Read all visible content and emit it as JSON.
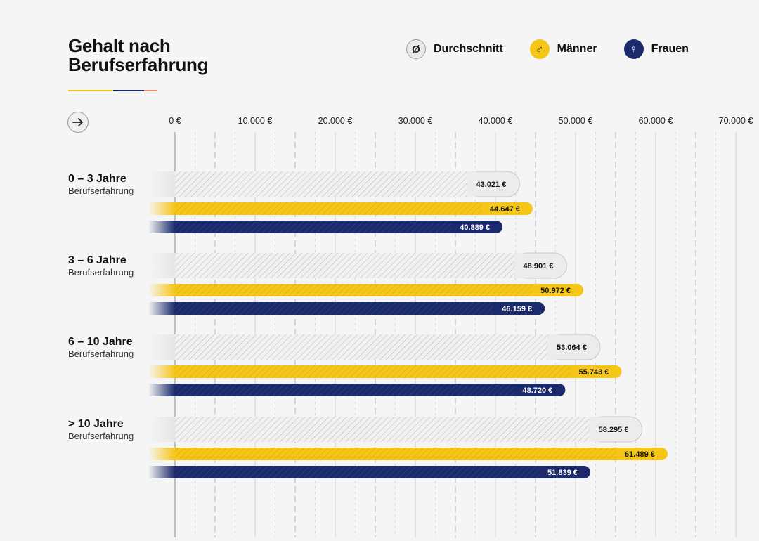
{
  "title_line1": "Gehalt nach",
  "title_line2": "Berufserfahrung",
  "colors": {
    "avg": "#e4e4e4",
    "men": "#f5c518",
    "women": "#1b2a6b",
    "underline": [
      "#f5c518",
      "#1b2a6b",
      "#f08a6a"
    ]
  },
  "legend": [
    {
      "key": "avg",
      "symbol": "Ø",
      "label": "Durchschnitt",
      "icon": "average-icon"
    },
    {
      "key": "men",
      "symbol": "♂",
      "label": "Männer",
      "icon": "male-icon"
    },
    {
      "key": "women",
      "symbol": "♀",
      "label": "Frauen",
      "icon": "female-icon"
    }
  ],
  "arrow_icon": "arrow-right-icon",
  "chart_data": {
    "type": "bar",
    "orientation": "horizontal",
    "title": "Gehalt nach Berufserfahrung",
    "xlabel": "",
    "ylabel": "",
    "xlim": [
      0,
      70000
    ],
    "xticks": [
      0,
      10000,
      20000,
      30000,
      40000,
      50000,
      60000,
      70000
    ],
    "xtick_labels": [
      "0 €",
      "10.000 €",
      "20.000 €",
      "30.000 €",
      "40.000 €",
      "50.000 €",
      "60.000 €",
      "70.000 €"
    ],
    "categories": [
      {
        "title": "0 – 3 Jahre",
        "sub": "Berufserfahrung"
      },
      {
        "title": "3 – 6 Jahre",
        "sub": "Berufserfahrung"
      },
      {
        "title": "6 – 10 Jahre",
        "sub": "Berufserfahrung"
      },
      {
        "title": "> 10 Jahre",
        "sub": "Berufserfahrung"
      }
    ],
    "series": [
      {
        "name": "Durchschnitt",
        "key": "avg",
        "values": [
          43021,
          48901,
          53064,
          58295
        ],
        "labels": [
          "43.021 €",
          "48.901 €",
          "53.064 €",
          "58.295 €"
        ]
      },
      {
        "name": "Männer",
        "key": "men",
        "values": [
          44647,
          50972,
          55743,
          61489
        ],
        "labels": [
          "44.647 €",
          "50.972 €",
          "55.743 €",
          "61.489 €"
        ]
      },
      {
        "name": "Frauen",
        "key": "women",
        "values": [
          40889,
          46159,
          48720,
          51839
        ],
        "labels": [
          "40.889 €",
          "46.159 €",
          "48.720 €",
          "51.839 €"
        ]
      }
    ]
  }
}
